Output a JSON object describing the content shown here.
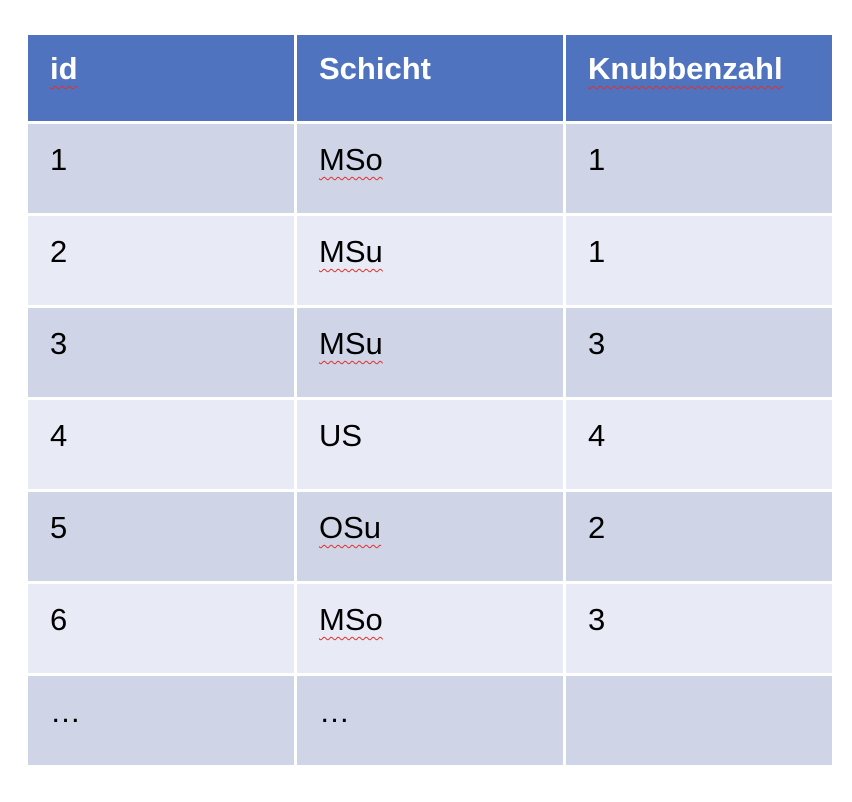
{
  "table": {
    "columns": [
      {
        "label": "id",
        "spellcheck": true
      },
      {
        "label": "Schicht",
        "spellcheck": false
      },
      {
        "label": "Knubbenzahl",
        "spellcheck": true
      }
    ],
    "rows": [
      {
        "id": "1",
        "schicht": "MSo",
        "knubbenzahl": "1"
      },
      {
        "id": "2",
        "schicht": "MSu",
        "knubbenzahl": "1"
      },
      {
        "id": "3",
        "schicht": "MSu",
        "knubbenzahl": "3"
      },
      {
        "id": "4",
        "schicht": "US",
        "knubbenzahl": "4"
      },
      {
        "id": "5",
        "schicht": "OSu",
        "knubbenzahl": "2"
      },
      {
        "id": "6",
        "schicht": "MSo",
        "knubbenzahl": "3"
      },
      {
        "id": "…",
        "schicht": "…",
        "knubbenzahl": ""
      }
    ]
  },
  "colors": {
    "header_bg": "#4f73be",
    "row_dark": "#cfd5e7",
    "row_light": "#e8ebf5",
    "spellcheck_underline": "#e0302a"
  }
}
